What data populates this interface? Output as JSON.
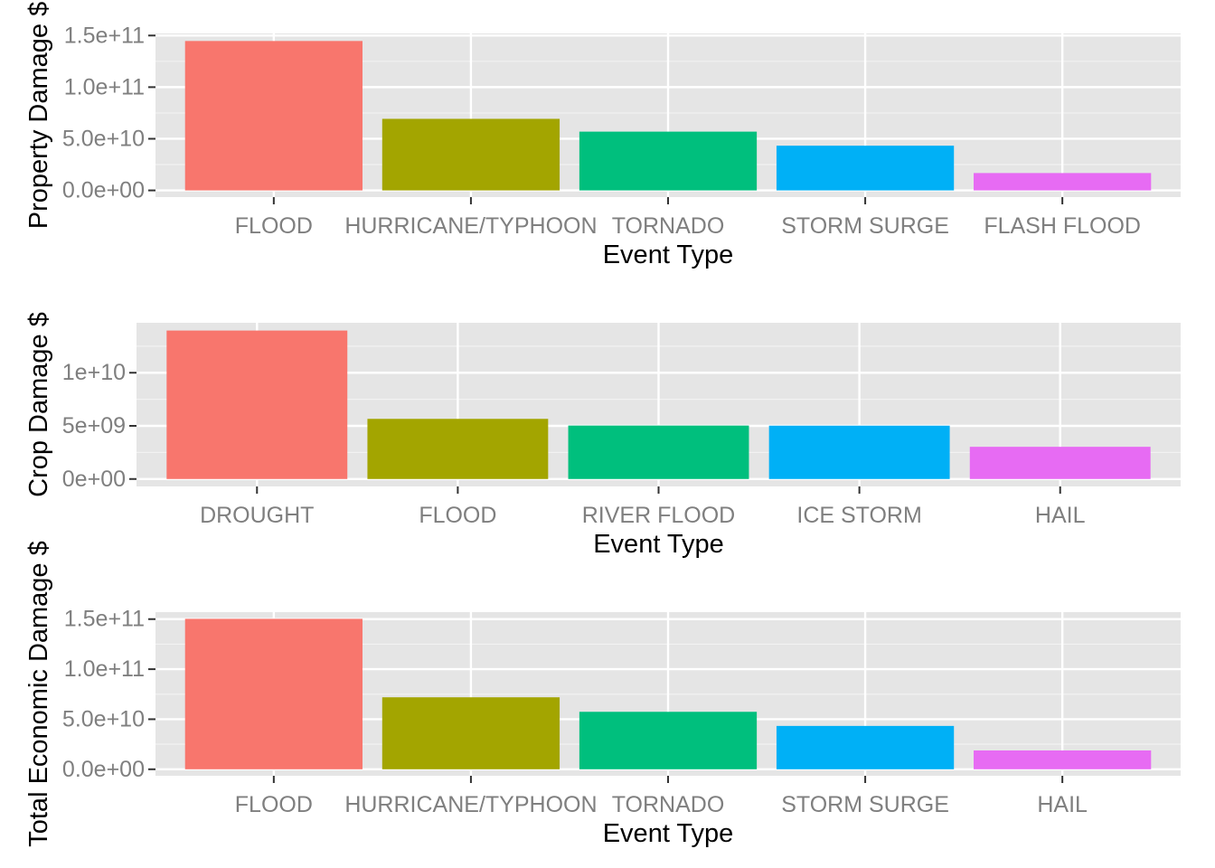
{
  "chart_data": [
    {
      "type": "bar",
      "xlabel": "Event Type",
      "ylabel": "Property Damage $",
      "categories": [
        "FLOOD",
        "HURRICANE/TYPHOON",
        "TORNADO",
        "STORM SURGE",
        "FLASH FLOOD"
      ],
      "values": [
        144700000000,
        69300000000,
        56900000000,
        43300000000,
        16800000000
      ],
      "colors": [
        "#F8766D",
        "#A3A500",
        "#00BF7D",
        "#00B0F6",
        "#E76BF3"
      ],
      "ylim": [
        -6500000000,
        152000000000
      ],
      "yticks": [
        0,
        50000000000,
        100000000000,
        150000000000
      ],
      "ytick_labels": [
        "0.0e+00",
        "5.0e+10",
        "1.0e+11",
        "1.5e+11"
      ],
      "grid": true,
      "background": "#E5E5E5"
    },
    {
      "type": "bar",
      "xlabel": "Event Type",
      "ylabel": "Crop Damage $",
      "categories": [
        "DROUGHT",
        "FLOOD",
        "RIVER FLOOD",
        "ICE STORM",
        "HAIL"
      ],
      "values": [
        13970000000,
        5660000000,
        5030000000,
        5020000000,
        3030000000
      ],
      "colors": [
        "#F8766D",
        "#A3A500",
        "#00BF7D",
        "#00B0F6",
        "#E76BF3"
      ],
      "ylim": [
        -700000000,
        14700000000
      ],
      "yticks": [
        0,
        5000000000,
        10000000000
      ],
      "ytick_labels": [
        "0e+00",
        "5e+09",
        "1e+10"
      ],
      "grid": true,
      "background": "#E5E5E5"
    },
    {
      "type": "bar",
      "xlabel": "Event Type",
      "ylabel": "Total Economic Damage $",
      "categories": [
        "FLOOD",
        "HURRICANE/TYPHOON",
        "TORNADO",
        "STORM SURGE",
        "HAIL"
      ],
      "values": [
        150300000000,
        71900000000,
        57400000000,
        43300000000,
        18800000000
      ],
      "colors": [
        "#F8766D",
        "#A3A500",
        "#00BF7D",
        "#00B0F6",
        "#E76BF3"
      ],
      "ylim": [
        -6500000000,
        157000000000
      ],
      "yticks": [
        0,
        50000000000,
        100000000000,
        150000000000
      ],
      "ytick_labels": [
        "0.0e+00",
        "5.0e+10",
        "1.0e+11",
        "1.5e+11"
      ],
      "grid": true,
      "background": "#E5E5E5"
    }
  ]
}
